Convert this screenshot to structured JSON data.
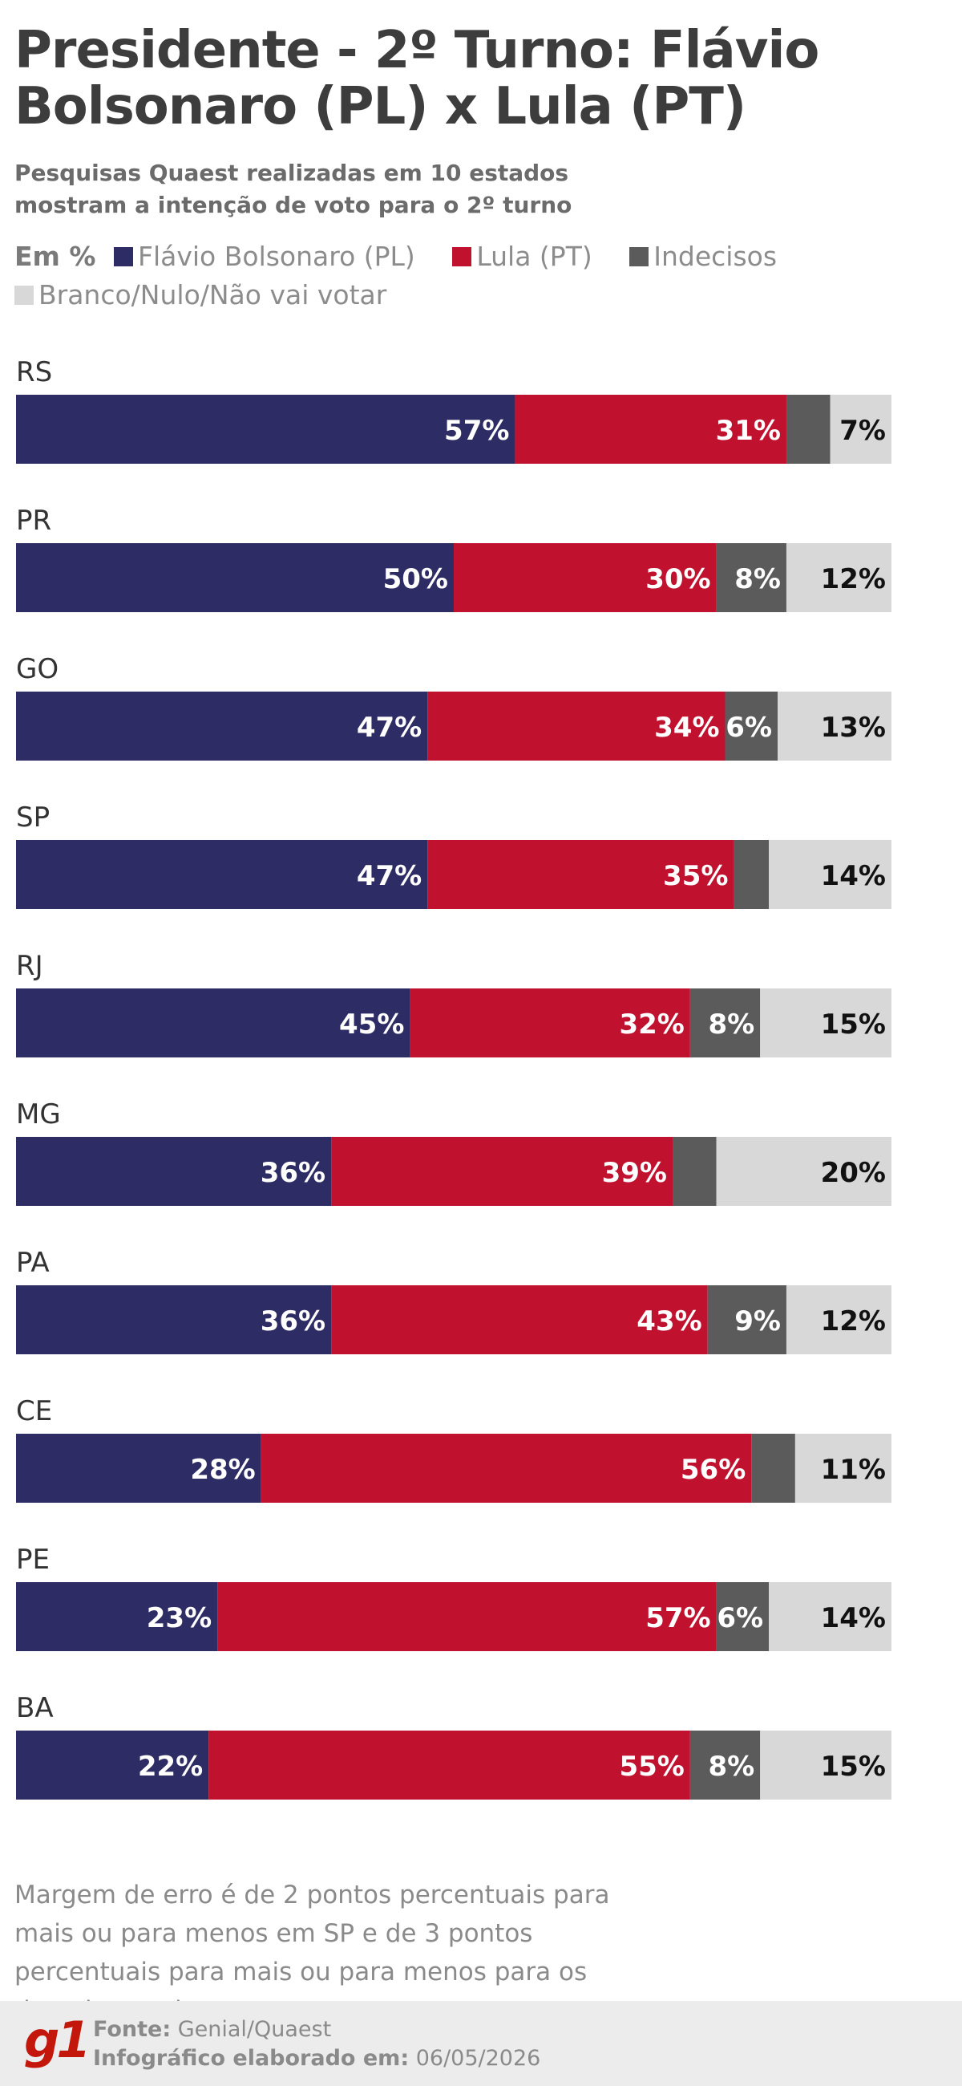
{
  "title": "Presidente - 2º Turno: Flávio Bolsonaro (PL) x Lula (PT)",
  "subtitle": "Pesquisas Quaest realizadas em 10 estados mostram a intenção de voto para o 2º turno",
  "legend": {
    "unit": "Em %",
    "items": [
      {
        "label": "Flávio Bolsonaro (PL)",
        "color": "#2d2c64"
      },
      {
        "label": "Lula (PT)",
        "color": "#c0112e"
      },
      {
        "label": "Indecisos",
        "color": "#5b5b5b"
      },
      {
        "label": "Branco/Nulo/Não vai votar",
        "color": "#d8d8d8"
      }
    ]
  },
  "chart_data": {
    "type": "bar",
    "orientation": "horizontal-stacked",
    "unit": "%",
    "categories": [
      "RS",
      "PR",
      "GO",
      "SP",
      "RJ",
      "MG",
      "PA",
      "CE",
      "PE",
      "BA"
    ],
    "series": [
      {
        "name": "Flávio Bolsonaro (PL)",
        "color": "#2d2c64",
        "values": [
          57,
          50,
          47,
          47,
          45,
          36,
          36,
          28,
          23,
          22
        ],
        "label_color": "#ffffff",
        "labeled": [
          true,
          true,
          true,
          true,
          true,
          true,
          true,
          true,
          true,
          true
        ]
      },
      {
        "name": "Lula (PT)",
        "color": "#c0112e",
        "values": [
          31,
          30,
          34,
          35,
          32,
          39,
          43,
          56,
          57,
          55
        ],
        "label_color": "#ffffff",
        "labeled": [
          true,
          true,
          true,
          true,
          true,
          true,
          true,
          true,
          true,
          true
        ]
      },
      {
        "name": "Indecisos",
        "color": "#5b5b5b",
        "values": [
          5,
          8,
          6,
          4,
          8,
          5,
          9,
          5,
          6,
          8
        ],
        "label_color": "#ffffff",
        "labeled": [
          false,
          true,
          true,
          false,
          true,
          false,
          true,
          false,
          true,
          true
        ]
      },
      {
        "name": "Branco/Nulo/Não vai votar",
        "color": "#d8d8d8",
        "values": [
          7,
          12,
          13,
          14,
          15,
          20,
          12,
          11,
          14,
          15
        ],
        "label_color": "#111111",
        "labeled": [
          true,
          true,
          true,
          true,
          true,
          true,
          true,
          true,
          true,
          true
        ]
      }
    ],
    "xlim": [
      0,
      100
    ],
    "grid": false
  },
  "note": "Margem de erro é de 2 pontos percentuais para mais ou para menos em SP e de 3 pontos percentuais para mais ou para menos para os demais estados.",
  "footer": {
    "logo": "g1",
    "source_label": "Fonte:",
    "source_value": "Genial/Quaest",
    "date_label": "Infográfico elaborado em:",
    "date_value": "06/05/2026"
  }
}
